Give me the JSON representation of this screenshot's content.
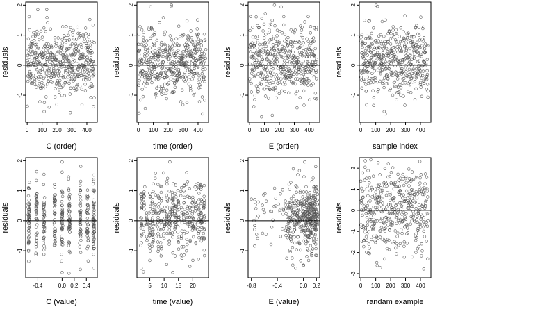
{
  "figure": {
    "colors": {
      "background": "#ffffff",
      "axis": "#000000",
      "points": "#555555",
      "zero_line": "#000000"
    },
    "panels": [
      {
        "id": "c-order",
        "xlabel": "C (order)",
        "ylabel": "residuals"
      },
      {
        "id": "time-order",
        "xlabel": "time (order)",
        "ylabel": "residuals"
      },
      {
        "id": "e-order",
        "xlabel": "E (order)",
        "ylabel": "residuals"
      },
      {
        "id": "sample-index",
        "xlabel": "sample index",
        "ylabel": "residuals"
      },
      {
        "id": "c-value",
        "xlabel": "C (value)",
        "ylabel": "residuals"
      },
      {
        "id": "time-value",
        "xlabel": "time (value)",
        "ylabel": "residuals"
      },
      {
        "id": "e-value",
        "xlabel": "E (value)",
        "ylabel": "residuals"
      },
      {
        "id": "random-example",
        "xlabel": "randam example",
        "ylabel": "residuals"
      }
    ]
  },
  "chart_data": [
    {
      "type": "scatter",
      "title": "",
      "xlabel": "C (order)",
      "ylabel": "residuals",
      "xlim": [
        -10,
        470
      ],
      "ylim": [
        -1.9,
        2.1
      ],
      "xticks": [
        0,
        100,
        200,
        300,
        400
      ],
      "xtick_labels": [
        "0",
        "100",
        "200",
        "300",
        "400"
      ],
      "yticks": [
        -1,
        0,
        1,
        2
      ],
      "ytick_labels": [
        "-1",
        "0",
        "1",
        "2"
      ],
      "reference_line": {
        "y": 0
      },
      "grid": false,
      "legend": "none",
      "x_pattern": "index",
      "n_points": 450,
      "y_center": 0.1,
      "y_spread": 0.58,
      "y_min": -1.75,
      "y_max": 2.0,
      "series": [
        {
          "marker": "open-circle",
          "x": [
            8,
            30,
            57,
            85,
            108,
            131,
            160,
            186,
            214,
            238,
            262,
            289,
            316,
            342,
            369,
            396,
            420,
            444
          ],
          "y": [
            0.88,
            -0.62,
            1.02,
            -1.22,
            0.34,
            1.85,
            -0.42,
            0.76,
            -0.9,
            1.28,
            0.14,
            -1.58,
            0.52,
            1.06,
            -0.34,
            0.72,
            1.52,
            -1.38
          ]
        }
      ]
    },
    {
      "type": "scatter",
      "title": "",
      "xlabel": "time (order)",
      "ylabel": "residuals",
      "xlim": [
        -10,
        470
      ],
      "ylim": [
        -1.9,
        2.1
      ],
      "xticks": [
        0,
        100,
        200,
        300,
        400
      ],
      "xtick_labels": [
        "0",
        "100",
        "200",
        "300",
        "400"
      ],
      "yticks": [
        -1,
        0,
        1,
        2
      ],
      "ytick_labels": [
        "-1",
        "0",
        "1",
        "2"
      ],
      "reference_line": {
        "y": 0
      },
      "grid": false,
      "legend": "none",
      "x_pattern": "index",
      "n_points": 450,
      "y_center": 0.1,
      "y_spread": 0.58,
      "y_min": -1.7,
      "y_max": 2.0,
      "series": [
        {
          "marker": "open-circle",
          "x": [
            5,
            32,
            60,
            88,
            114,
            140,
            167,
            194,
            220,
            246,
            272,
            298,
            325,
            352,
            378,
            404,
            430,
            452
          ],
          "y": [
            -1.6,
            0.92,
            -0.48,
            1.22,
            0.18,
            -0.92,
            1.58,
            0.44,
            1.96,
            -0.74,
            0.66,
            -1.32,
            0.32,
            1.14,
            -0.28,
            0.86,
            -1.62,
            0.52
          ]
        }
      ]
    },
    {
      "type": "scatter",
      "title": "",
      "xlabel": "E (order)",
      "ylabel": "residuals",
      "xlim": [
        -10,
        470
      ],
      "ylim": [
        -1.9,
        2.1
      ],
      "xticks": [
        0,
        100,
        200,
        300,
        400
      ],
      "xtick_labels": [
        "0",
        "100",
        "200",
        "300",
        "400"
      ],
      "yticks": [
        -1,
        0,
        1,
        2
      ],
      "ytick_labels": [
        "-1",
        "0",
        "1",
        "2"
      ],
      "reference_line": {
        "y": 0
      },
      "grid": false,
      "legend": "none",
      "x_pattern": "index",
      "n_points": 450,
      "y_center": 0.15,
      "y_spread": 0.58,
      "y_min": -1.75,
      "y_max": 2.0,
      "series": [
        {
          "marker": "open-circle",
          "x": [
            6,
            28,
            54,
            80,
            106,
            132,
            158,
            184,
            212,
            236,
            262,
            290,
            318,
            344,
            370,
            398,
            424,
            448
          ],
          "y": [
            1.62,
            -1.38,
            0.82,
            -1.72,
            0.46,
            1.34,
            -0.58,
            0.98,
            1.94,
            -0.88,
            0.26,
            1.12,
            -1.42,
            0.64,
            1.44,
            -0.52,
            0.78,
            -1.12
          ]
        }
      ]
    },
    {
      "type": "scatter",
      "title": "",
      "xlabel": "sample index",
      "ylabel": "residuals",
      "xlim": [
        -10,
        470
      ],
      "ylim": [
        -1.9,
        2.1
      ],
      "xticks": [
        0,
        100,
        200,
        300,
        400
      ],
      "xtick_labels": [
        "0",
        "100",
        "200",
        "300",
        "400"
      ],
      "yticks": [
        -1,
        0,
        1,
        2
      ],
      "ytick_labels": [
        "-1",
        "0",
        "1",
        "2"
      ],
      "reference_line": {
        "y": 0
      },
      "grid": false,
      "legend": "none",
      "x_pattern": "index",
      "n_points": 450,
      "y_center": 0.15,
      "y_spread": 0.58,
      "y_min": -1.75,
      "y_max": 2.0,
      "series": [
        {
          "marker": "open-circle",
          "x": [
            8,
            34,
            58,
            86,
            112,
            138,
            164,
            190,
            216,
            242,
            268,
            296,
            322,
            348,
            374,
            400,
            426,
            450
          ],
          "y": [
            1.02,
            -0.64,
            1.48,
            -1.34,
            1.96,
            0.36,
            -1.62,
            1.14,
            0.58,
            -0.92,
            1.24,
            0.22,
            -0.38,
            0.94,
            1.32,
            -0.58,
            0.44,
            -0.86
          ]
        }
      ]
    },
    {
      "type": "scatter",
      "title": "",
      "xlabel": "C (value)",
      "ylabel": "residuals",
      "xlim": [
        -0.6,
        0.58
      ],
      "ylim": [
        -1.9,
        2.1
      ],
      "xticks": [
        -0.4,
        0.0,
        0.2,
        0.4
      ],
      "xtick_labels": [
        "-0.4",
        "0.0",
        "0.2",
        "0.4"
      ],
      "yticks": [
        -1,
        0,
        1,
        2
      ],
      "ytick_labels": [
        "-1",
        "0",
        "1",
        "2"
      ],
      "reference_line": {
        "y": 0
      },
      "grid": false,
      "legend": "none",
      "x_pattern": "discrete",
      "x_levels": [
        -0.55,
        -0.42,
        -0.3,
        -0.12,
        0.0,
        0.12,
        0.3,
        0.42,
        0.52
      ],
      "n_points": 400,
      "y_center": 0.1,
      "y_spread": 0.6,
      "y_min": -1.75,
      "y_max": 2.0,
      "series": [
        {
          "marker": "open-circle",
          "x": [
            -0.55,
            -0.55,
            -0.42,
            -0.3,
            -0.12,
            0.0,
            0.0,
            0.0,
            0.12,
            0.3,
            0.42,
            0.52,
            0.52
          ],
          "y": [
            -1.35,
            1.08,
            0.82,
            -1.12,
            1.12,
            1.96,
            -1.72,
            1.62,
            -0.72,
            -1.62,
            1.02,
            1.52,
            -1.58
          ]
        }
      ]
    },
    {
      "type": "scatter",
      "title": "",
      "xlabel": "time (value)",
      "ylabel": "residuals",
      "xlim": [
        0.5,
        25.5
      ],
      "ylim": [
        -1.9,
        2.1
      ],
      "xticks": [
        5,
        10,
        15,
        20
      ],
      "xtick_labels": [
        "5",
        "10",
        "15",
        "20"
      ],
      "yticks": [
        -1,
        0,
        1,
        2
      ],
      "ytick_labels": [
        "-1",
        "0",
        "1",
        "2"
      ],
      "reference_line": {
        "y": 0
      },
      "grid": false,
      "legend": "none",
      "x_pattern": "discrete",
      "x_levels": [
        2,
        3,
        4,
        5,
        6,
        7,
        8,
        9,
        10,
        11,
        12,
        13,
        14,
        15,
        16,
        17,
        18,
        19,
        20,
        21,
        22,
        23,
        24
      ],
      "n_points": 430,
      "y_center": 0.1,
      "y_spread": 0.58,
      "y_min": -1.7,
      "y_max": 2.0,
      "series": [
        {
          "marker": "open-circle",
          "x": [
            2,
            3,
            5,
            7,
            9,
            11,
            12,
            13,
            15,
            17,
            19,
            21,
            23,
            24
          ],
          "y": [
            -1.58,
            0.96,
            -1.32,
            1.58,
            -0.86,
            1.22,
            1.96,
            -1.72,
            0.64,
            1.18,
            -1.52,
            0.42,
            1.12,
            -0.98
          ]
        }
      ]
    },
    {
      "type": "scatter",
      "title": "",
      "xlabel": "E (value)",
      "ylabel": "residuals",
      "xlim": [
        -0.85,
        0.25
      ],
      "ylim": [
        -1.9,
        2.1
      ],
      "xticks": [
        -0.8,
        -0.4,
        0.0,
        0.2
      ],
      "xtick_labels": [
        "-0.8",
        "-0.4",
        "0.0",
        "0.2"
      ],
      "yticks": [
        -1,
        0,
        1,
        2
      ],
      "ytick_labels": [
        "-1",
        "0",
        "1",
        "2"
      ],
      "reference_line": {
        "y": 0
      },
      "grid": false,
      "legend": "none",
      "x_pattern": "skewed",
      "x_cluster_range": [
        -0.35,
        0.22
      ],
      "x_sparse_range": [
        -0.8,
        -0.35
      ],
      "n_points": 420,
      "y_center": 0.1,
      "y_spread": 0.55,
      "y_min": -1.75,
      "y_max": 2.0,
      "series": [
        {
          "marker": "open-circle",
          "x": [
            -0.8,
            -0.75,
            -0.45,
            -0.35,
            -0.22,
            -0.12,
            -0.05,
            0.02,
            0.08,
            0.15,
            0.2
          ],
          "y": [
            0.72,
            -0.84,
            0.48,
            -0.52,
            1.22,
            -1.58,
            0.94,
            1.96,
            -1.32,
            1.42,
            -0.62
          ]
        }
      ]
    },
    {
      "type": "scatter",
      "title": "",
      "xlabel": "randam example",
      "ylabel": "residuals",
      "xlim": [
        -10,
        470
      ],
      "ylim": [
        -3.2,
        2.5
      ],
      "xticks": [
        0,
        100,
        200,
        300,
        400
      ],
      "xtick_labels": [
        "0",
        "100",
        "200",
        "300",
        "400"
      ],
      "yticks": [
        -3,
        -2,
        -1,
        0,
        1,
        2
      ],
      "ytick_labels": [
        "-3",
        "-2",
        "-1",
        "0",
        "1",
        "2"
      ],
      "reference_line": {
        "y": 0
      },
      "grid": false,
      "legend": "none",
      "x_pattern": "index",
      "n_points": 400,
      "y_center": 0.0,
      "y_spread": 1.0,
      "y_min": -3.0,
      "y_max": 2.4,
      "series": [
        {
          "marker": "open-circle",
          "x": [
            5,
            30,
            58,
            84,
            110,
            136,
            162,
            188,
            214,
            240,
            266,
            292,
            318,
            344,
            370,
            396,
            422,
            448
          ],
          "y": [
            1.05,
            2.35,
            -2.05,
            1.62,
            -2.62,
            0.82,
            1.98,
            -1.42,
            2.02,
            -0.62,
            1.52,
            -2.22,
            0.46,
            1.82,
            -1.12,
            2.32,
            -2.78,
            0.64
          ]
        }
      ]
    }
  ]
}
